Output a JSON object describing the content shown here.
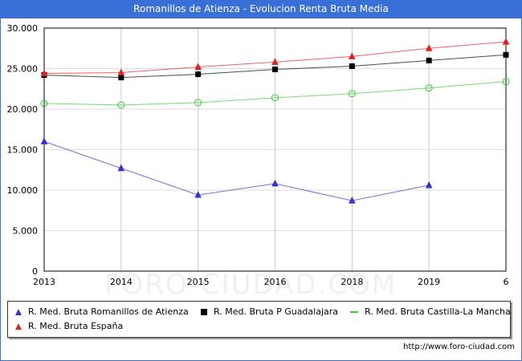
{
  "title": "Romanillos de Atienza - Evolucion Renta Bruta Media",
  "watermark": "FORO-CIUDAD.COM",
  "footer_url": "http://www.foro-ciudad.com",
  "chart_data": {
    "type": "line",
    "title": "Romanillos de Atienza - Evolucion Renta Bruta Media",
    "x": [
      "2013",
      "2014",
      "2015",
      "2016",
      "2018",
      "2019",
      "6"
    ],
    "ylim": [
      0,
      30000
    ],
    "y_ticks": [
      "0",
      "5.000",
      "10.000",
      "15.000",
      "20.000",
      "25.000",
      "30.000"
    ],
    "grid": true,
    "legend_position": "bottom",
    "series": [
      {
        "name": "R. Med. Bruta Romanillos de Atienza",
        "color": "#3333cc",
        "marker": "triangle",
        "values": [
          16000,
          12700,
          9400,
          10800,
          8700,
          10600,
          null
        ]
      },
      {
        "name": "R. Med. Bruta P Guadalajara",
        "color": "#000000",
        "marker": "square",
        "values": [
          24200,
          23900,
          24300,
          24900,
          25300,
          26000,
          26700
        ]
      },
      {
        "name": "R. Med. Bruta Castilla-La Mancha",
        "color": "#33cc33",
        "marker": "diamond",
        "values": [
          20700,
          20500,
          20800,
          21400,
          21900,
          22600,
          23400
        ]
      },
      {
        "name": "R. Med. Bruta España",
        "color": "#dd2222",
        "marker": "triangle",
        "values": [
          24400,
          24500,
          25200,
          25800,
          26500,
          27500,
          28300
        ]
      }
    ]
  }
}
